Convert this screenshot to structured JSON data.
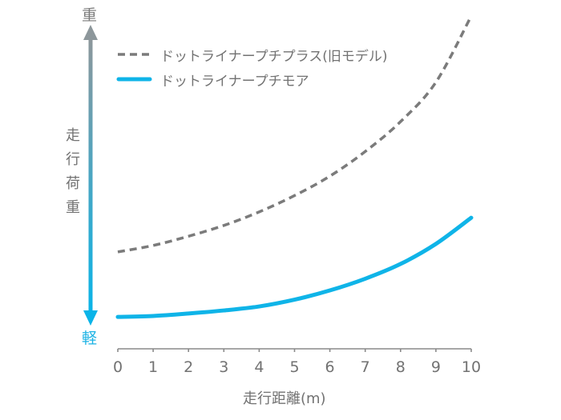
{
  "chart_data": {
    "type": "line",
    "title": "",
    "xlabel": "走行距離(m)",
    "ylabel": "走行荷重",
    "ylabel_chars": [
      "走",
      "行",
      "荷",
      "重"
    ],
    "y_top_label": "重",
    "y_bottom_label": "軽",
    "x": [
      0,
      1,
      2,
      3,
      4,
      5,
      6,
      7,
      8,
      9,
      10
    ],
    "xlim": [
      0,
      10
    ],
    "ylim": [
      0,
      100
    ],
    "y_units": "relative (no numeric ticks shown)",
    "grid": false,
    "legend_position": "top-left",
    "series": [
      {
        "name": "ドットライナープチプラス(旧モデル)",
        "style": "dashed",
        "color": "#7b7b7b",
        "values": [
          23.4,
          25.5,
          28.5,
          32,
          36.4,
          41.7,
          48,
          56,
          65.7,
          78.5,
          100
        ]
      },
      {
        "name": "ドットライナープチモア",
        "style": "solid",
        "color": "#0fb4e8",
        "values": [
          2.3,
          2.6,
          3.4,
          4.4,
          5.7,
          7.9,
          10.9,
          14.7,
          19.5,
          26,
          34.5
        ]
      }
    ]
  },
  "legend": {
    "items": [
      {
        "label": "ドットライナープチプラス(旧モデル)",
        "style": "dashed"
      },
      {
        "label": "ドットライナープチモア",
        "style": "solid"
      }
    ]
  },
  "axis": {
    "x_ticks": [
      "0",
      "1",
      "2",
      "3",
      "4",
      "5",
      "6",
      "7",
      "8",
      "9",
      "10"
    ],
    "x_title": "走行距離(m)",
    "y_top": "重",
    "y_bottom": "軽",
    "y_title_chars": [
      "走",
      "行",
      "荷",
      "重"
    ]
  },
  "colors": {
    "dashed": "#7b7b7b",
    "solid": "#0fb4e8",
    "arrow_top": "#8d979b",
    "arrow_bottom": "#0ab4e8",
    "axis": "#8a8a8a",
    "text": "#727272"
  }
}
